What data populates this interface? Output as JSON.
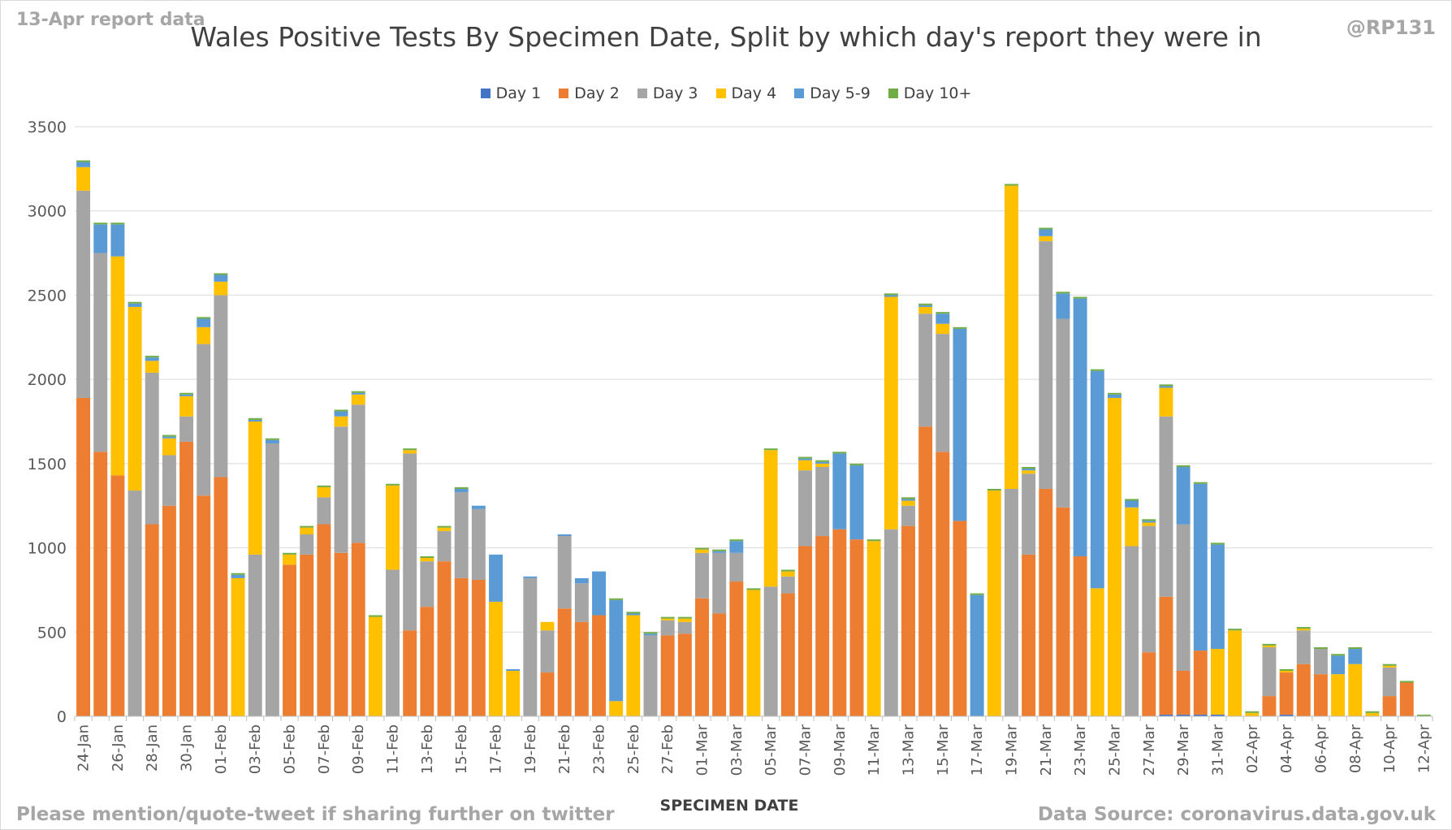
{
  "header": {
    "report_label": "13-Apr report data",
    "handle": "@RP131"
  },
  "footer": {
    "left_text": "Please mention/quote-tweet if sharing further on twitter",
    "right_text": "Data Source: coronavirus.data.gov.uk"
  },
  "colors": {
    "Day 1": "#4472c4",
    "Day 2": "#ed7d31",
    "Day 3": "#a5a5a5",
    "Day 4": "#ffc000",
    "Day 5-9": "#5b9bd5",
    "Day 10+": "#70ad47",
    "gridline": "#d9d9d9",
    "axis_text": "#595959"
  },
  "chart_data": {
    "type": "bar",
    "stacked": true,
    "title": "Wales Positive Tests By Specimen Date, Split by which day's report they were in",
    "xlabel": "SPECIMEN DATE",
    "ylabel": "",
    "ylim": [
      0,
      3500
    ],
    "yticks": [
      0,
      500,
      1000,
      1500,
      2000,
      2500,
      3000,
      3500
    ],
    "grid": true,
    "legend_position": "top",
    "categories": [
      "24-Jan",
      "25-Jan",
      "26-Jan",
      "27-Jan",
      "28-Jan",
      "29-Jan",
      "30-Jan",
      "31-Jan",
      "01-Feb",
      "02-Feb",
      "03-Feb",
      "04-Feb",
      "05-Feb",
      "06-Feb",
      "07-Feb",
      "08-Feb",
      "09-Feb",
      "10-Feb",
      "11-Feb",
      "12-Feb",
      "13-Feb",
      "14-Feb",
      "15-Feb",
      "16-Feb",
      "17-Feb",
      "18-Feb",
      "19-Feb",
      "20-Feb",
      "21-Feb",
      "22-Feb",
      "23-Feb",
      "24-Feb",
      "25-Feb",
      "26-Feb",
      "27-Feb",
      "28-Feb",
      "01-Mar",
      "02-Mar",
      "03-Mar",
      "04-Mar",
      "05-Mar",
      "06-Mar",
      "07-Mar",
      "08-Mar",
      "09-Mar",
      "10-Mar",
      "11-Mar",
      "12-Mar",
      "13-Mar",
      "14-Mar",
      "15-Mar",
      "16-Mar",
      "17-Mar",
      "18-Mar",
      "19-Mar",
      "20-Mar",
      "21-Mar",
      "22-Mar",
      "23-Mar",
      "24-Mar",
      "25-Mar",
      "26-Mar",
      "27-Mar",
      "28-Mar",
      "29-Mar",
      "30-Mar",
      "31-Mar",
      "01-Apr",
      "02-Apr",
      "03-Apr",
      "04-Apr",
      "05-Apr",
      "06-Apr",
      "07-Apr",
      "08-Apr",
      "09-Apr",
      "10-Apr",
      "11-Apr",
      "12-Apr"
    ],
    "label_every": 2,
    "series": [
      {
        "name": "Day 1",
        "values": [
          0,
          0,
          0,
          0,
          0,
          0,
          0,
          0,
          0,
          0,
          0,
          0,
          0,
          0,
          0,
          0,
          0,
          0,
          0,
          0,
          0,
          0,
          0,
          0,
          0,
          0,
          0,
          0,
          0,
          0,
          0,
          0,
          0,
          0,
          0,
          0,
          0,
          0,
          0,
          0,
          0,
          0,
          0,
          0,
          0,
          0,
          0,
          0,
          0,
          0,
          0,
          0,
          0,
          0,
          0,
          0,
          0,
          0,
          0,
          0,
          0,
          0,
          0,
          10,
          10,
          10,
          10,
          0,
          0,
          0,
          10,
          0,
          0,
          0,
          0,
          0,
          0,
          0,
          0
        ]
      },
      {
        "name": "Day 2",
        "values": [
          1890,
          1570,
          1430,
          0,
          1140,
          1250,
          1630,
          1310,
          1420,
          0,
          0,
          0,
          900,
          960,
          1140,
          970,
          1030,
          0,
          0,
          510,
          650,
          920,
          820,
          810,
          0,
          0,
          0,
          260,
          640,
          560,
          600,
          0,
          0,
          0,
          480,
          490,
          700,
          610,
          800,
          0,
          0,
          730,
          1010,
          1070,
          1110,
          1050,
          0,
          0,
          1130,
          1720,
          1570,
          1160,
          0,
          0,
          0,
          960,
          1350,
          1240,
          950,
          0,
          0,
          0,
          380,
          700,
          260,
          380,
          0,
          0,
          0,
          120,
          250,
          310,
          250,
          0,
          0,
          0,
          120,
          200,
          0
        ]
      },
      {
        "name": "Day 3",
        "values": [
          1230,
          1180,
          0,
          1340,
          900,
          300,
          150,
          900,
          1080,
          0,
          960,
          1620,
          0,
          120,
          160,
          750,
          820,
          0,
          870,
          1050,
          270,
          180,
          510,
          420,
          0,
          0,
          820,
          250,
          430,
          230,
          0,
          0,
          0,
          480,
          90,
          70,
          270,
          360,
          170,
          0,
          770,
          100,
          450,
          410,
          0,
          0,
          0,
          1110,
          120,
          670,
          700,
          0,
          0,
          0,
          1350,
          480,
          1470,
          1120,
          0,
          0,
          0,
          1010,
          750,
          1070,
          870,
          0,
          0,
          0,
          0,
          290,
          0,
          200,
          150,
          0,
          0,
          0,
          170,
          0,
          0
        ]
      },
      {
        "name": "Day 4",
        "values": [
          140,
          0,
          1300,
          1090,
          70,
          100,
          120,
          100,
          80,
          820,
          790,
          0,
          60,
          40,
          60,
          60,
          60,
          590,
          500,
          20,
          20,
          20,
          0,
          0,
          680,
          270,
          0,
          50,
          0,
          0,
          0,
          90,
          600,
          0,
          10,
          20,
          20,
          0,
          0,
          750,
          810,
          30,
          60,
          20,
          0,
          0,
          1040,
          1380,
          30,
          40,
          60,
          0,
          0,
          1340,
          1800,
          20,
          30,
          0,
          0,
          760,
          1890,
          230,
          20,
          170,
          0,
          0,
          390,
          510,
          20,
          10,
          10,
          10,
          0,
          250,
          310,
          20,
          10,
          0,
          0
        ]
      },
      {
        "name": "Day 5-9",
        "values": [
          30,
          170,
          190,
          20,
          20,
          10,
          10,
          50,
          40,
          20,
          10,
          20,
          0,
          0,
          0,
          30,
          10,
          0,
          0,
          0,
          0,
          0,
          20,
          20,
          280,
          10,
          10,
          0,
          10,
          30,
          260,
          600,
          10,
          10,
          0,
          0,
          0,
          10,
          70,
          0,
          0,
          0,
          10,
          10,
          450,
          440,
          0,
          10,
          10,
          10,
          60,
          1140,
          720,
          0,
          0,
          10,
          40,
          150,
          1530,
          1290,
          20,
          40,
          10,
          10,
          340,
          990,
          620,
          0,
          0,
          0,
          0,
          0,
          0,
          110,
          90,
          0,
          0,
          0,
          0
        ]
      },
      {
        "name": "Day 10+",
        "values": [
          10,
          10,
          10,
          10,
          10,
          10,
          10,
          10,
          10,
          10,
          10,
          10,
          10,
          10,
          10,
          10,
          10,
          10,
          10,
          10,
          10,
          10,
          10,
          0,
          0,
          0,
          0,
          0,
          0,
          0,
          0,
          10,
          10,
          10,
          10,
          10,
          10,
          10,
          10,
          10,
          10,
          10,
          10,
          10,
          10,
          10,
          10,
          10,
          10,
          10,
          10,
          10,
          10,
          10,
          10,
          10,
          10,
          10,
          10,
          10,
          10,
          10,
          10,
          10,
          10,
          10,
          10,
          10,
          10,
          10,
          10,
          10,
          10,
          10,
          10,
          10,
          10,
          10,
          10
        ]
      }
    ]
  }
}
